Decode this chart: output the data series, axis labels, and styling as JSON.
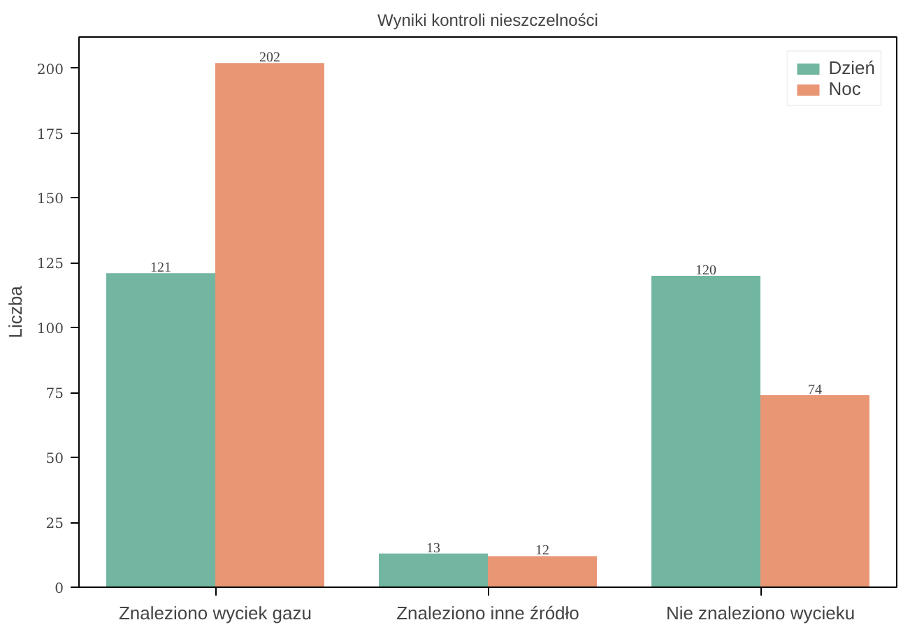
{
  "chart_data": {
    "type": "bar",
    "title": "Wyniki kontroli nieszczelności",
    "ylabel": "Liczba",
    "categories": [
      "Znaleziono wyciek gazu",
      "Znaleziono inne źródło",
      "Nie znaleziono wycieku"
    ],
    "series": [
      {
        "name": "Dzień",
        "color": "#72b6a1",
        "values": [
          121,
          13,
          120
        ]
      },
      {
        "name": "Noc",
        "color": "#e99675",
        "values": [
          202,
          12,
          74
        ]
      }
    ],
    "ylim": [
      0,
      212
    ],
    "yticks": [
      0,
      25,
      50,
      75,
      100,
      125,
      150,
      175,
      200
    ],
    "data_labels": true,
    "legend": "top right",
    "grid": false
  }
}
